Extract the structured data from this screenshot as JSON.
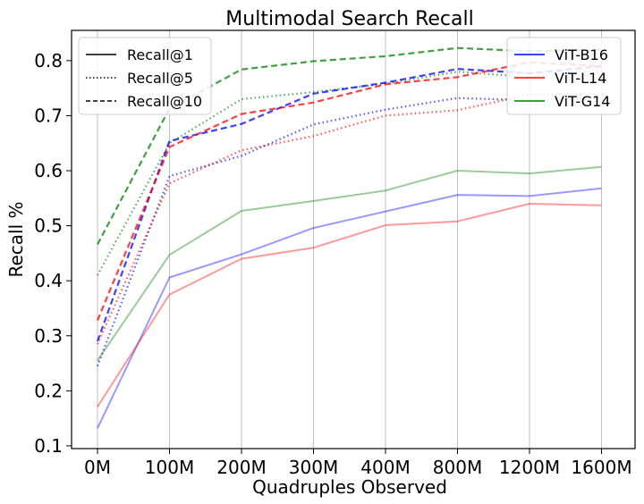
{
  "chart_data": {
    "type": "line",
    "title": "Multimodal Search Recall",
    "xlabel": "Quadruples Observed",
    "ylabel": "Recall %",
    "categories": [
      "0M",
      "100M",
      "200M",
      "300M",
      "400M",
      "800M",
      "1200M",
      "1600M"
    ],
    "ylim": [
      0.095,
      0.855
    ],
    "yticks": [
      0.1,
      0.2,
      0.3,
      0.4,
      0.5,
      0.6,
      0.7,
      0.8
    ],
    "grid": "vertical",
    "legend_styles": {
      "placement": "upper-left",
      "entries": [
        {
          "label": "Recall@1",
          "dash": "solid"
        },
        {
          "label": "Recall@5",
          "dash": "dotted"
        },
        {
          "label": "Recall@10",
          "dash": "dashed"
        }
      ]
    },
    "legend_models": {
      "placement": "upper-right",
      "entries": [
        {
          "label": "ViT-B16",
          "color": "#0000ff"
        },
        {
          "label": "ViT-L14",
          "color": "#ff0000"
        },
        {
          "label": "ViT-G14",
          "color": "#008000"
        }
      ]
    },
    "series": [
      {
        "model": "ViT-B16",
        "metric": "Recall@1",
        "color": "#0000ff",
        "dash": "solid",
        "values": [
          0.132,
          0.406,
          0.448,
          0.496,
          0.526,
          0.556,
          0.554,
          0.568
        ]
      },
      {
        "model": "ViT-L14",
        "metric": "Recall@1",
        "color": "#ff0000",
        "dash": "solid",
        "values": [
          0.171,
          0.375,
          0.44,
          0.46,
          0.501,
          0.508,
          0.54,
          0.537
        ]
      },
      {
        "model": "ViT-G14",
        "metric": "Recall@1",
        "color": "#008000",
        "dash": "solid",
        "values": [
          0.255,
          0.447,
          0.527,
          0.545,
          0.564,
          0.6,
          0.595,
          0.607
        ]
      },
      {
        "model": "ViT-B16",
        "metric": "Recall@5",
        "color": "#0000ff",
        "dash": "dotted",
        "values": [
          0.245,
          0.59,
          0.627,
          0.684,
          0.711,
          0.732,
          0.728,
          0.732
        ]
      },
      {
        "model": "ViT-L14",
        "metric": "Recall@5",
        "color": "#ff0000",
        "dash": "dotted",
        "values": [
          0.285,
          0.577,
          0.637,
          0.663,
          0.7,
          0.71,
          0.738,
          0.74
        ]
      },
      {
        "model": "ViT-G14",
        "metric": "Recall@5",
        "color": "#008000",
        "dash": "dotted",
        "values": [
          0.41,
          0.65,
          0.73,
          0.743,
          0.758,
          0.78,
          0.77,
          0.785
        ]
      },
      {
        "model": "ViT-B16",
        "metric": "Recall@10",
        "color": "#0000ff",
        "dash": "dashed",
        "values": [
          0.29,
          0.654,
          0.685,
          0.74,
          0.76,
          0.785,
          0.777,
          0.79
        ]
      },
      {
        "model": "ViT-L14",
        "metric": "Recall@10",
        "color": "#ff0000",
        "dash": "dashed",
        "values": [
          0.328,
          0.643,
          0.703,
          0.724,
          0.757,
          0.77,
          0.797,
          0.79
        ]
      },
      {
        "model": "ViT-G14",
        "metric": "Recall@10",
        "color": "#008000",
        "dash": "dashed",
        "values": [
          0.466,
          0.713,
          0.784,
          0.799,
          0.808,
          0.823,
          0.817,
          0.82
        ]
      }
    ]
  }
}
